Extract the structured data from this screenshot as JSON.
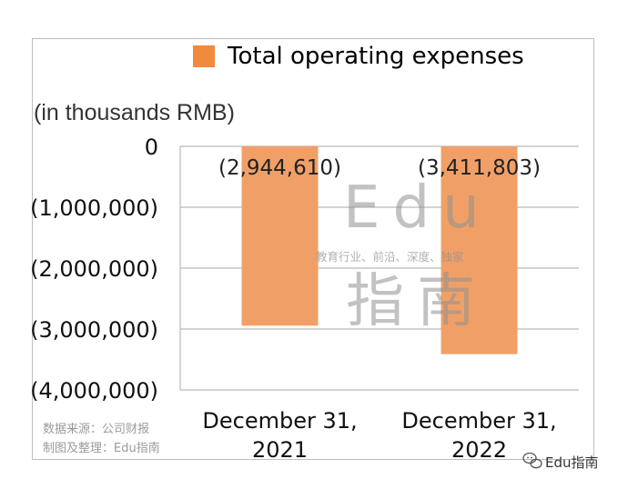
{
  "chart_data": {
    "type": "bar",
    "legend": "Total operating expenses",
    "unit_label": "(in thousands RMB)",
    "categories": [
      "December 31, 2021",
      "December 31, 2022"
    ],
    "category_lines": [
      [
        "December 31,",
        "2021"
      ],
      [
        "December 31,",
        "2022"
      ]
    ],
    "series": [
      {
        "name": "Total operating expenses",
        "values": [
          -2944610,
          -3411803
        ]
      }
    ],
    "data_labels": [
      "(2,944,610)",
      "(3,411,803)"
    ],
    "y_ticks": [
      0,
      -1000000,
      -2000000,
      -3000000,
      -4000000
    ],
    "y_tick_labels": [
      "0",
      "(1,000,000)",
      "(2,000,000)",
      "(3,000,000)",
      "(4,000,000)"
    ],
    "ylim": [
      -4000000,
      0
    ],
    "grid": true,
    "legend_position": "top",
    "colors": {
      "bar": "#F0A067",
      "legend_swatch": "#F08A3C",
      "grid": "#b9b9b9"
    }
  },
  "source_lines": [
    "数据来源：公司财报",
    "制图及整理：Edu指南"
  ],
  "watermark": {
    "main": "Edu",
    "tagline": "教育行业、前沿、深度、独家",
    "cn": "指南"
  },
  "brand": {
    "icon": "wechat-icon",
    "name": "Edu指南"
  }
}
